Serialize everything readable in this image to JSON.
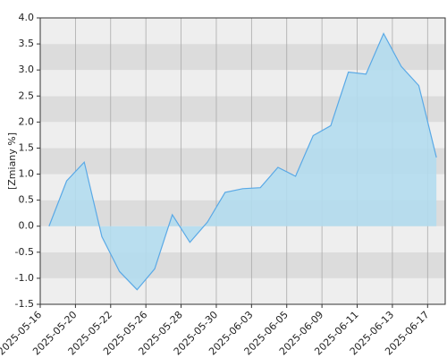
{
  "chart_data": {
    "type": "area",
    "y_label": "[Zmiany %]",
    "categories": [
      "2025-05-16",
      null,
      "2025-05-20",
      null,
      "2025-05-22",
      null,
      "2025-05-26",
      null,
      "2025-05-28",
      null,
      "2025-05-30",
      null,
      "2025-06-03",
      null,
      "2025-06-05",
      null,
      "2025-06-09",
      null,
      "2025-06-11",
      null,
      "2025-06-13",
      null,
      "2025-06-17"
    ],
    "values": [
      0,
      0.87,
      1.23,
      -0.2,
      -0.87,
      -1.22,
      -0.82,
      0.22,
      -0.31,
      0.08,
      0.65,
      0.72,
      0.74,
      1.13,
      0.96,
      1.74,
      1.93,
      2.96,
      2.92,
      3.7,
      3.07,
      2.7,
      1.32
    ],
    "color": "#5aa9e6",
    "fill": "#b3dcee",
    "ylim": [
      -1.5,
      4.0
    ],
    "yticks": [
      {
        "value": -1.5,
        "label": "-1.5"
      },
      {
        "value": -1.0,
        "label": "-1.0"
      },
      {
        "value": -0.5,
        "label": "-0.5"
      },
      {
        "value": 0,
        "label": "0.0"
      },
      {
        "value": 0.5,
        "label": "0.5"
      },
      {
        "value": 1.0,
        "label": "1.0"
      },
      {
        "value": 1.5,
        "label": "1.5"
      },
      {
        "value": 2.0,
        "label": "2.0"
      },
      {
        "value": 2.5,
        "label": "2.5"
      },
      {
        "value": 3.0,
        "label": "3.0"
      },
      {
        "value": 3.5,
        "label": "3.5"
      },
      {
        "value": 4.0,
        "label": "4.0"
      }
    ],
    "grid": true
  }
}
